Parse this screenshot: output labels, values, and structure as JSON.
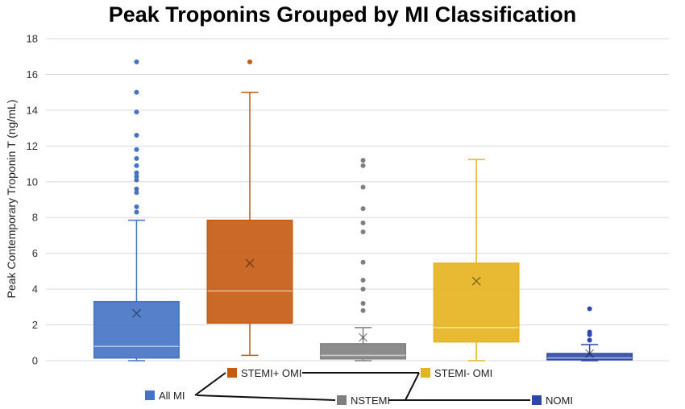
{
  "chart_data": {
    "type": "boxplot",
    "title": "Peak Troponins Grouped by MI Classification",
    "ylabel": "Peak Contemporary Troponin T (ng/mL)",
    "xlabel": "",
    "ylim": [
      0,
      18
    ],
    "yticks": [
      0,
      2,
      4,
      6,
      8,
      10,
      12,
      14,
      16,
      18
    ],
    "grid": true,
    "series": [
      {
        "name": "All MI",
        "color": "#4472c4",
        "whisker_low": 0.0,
        "q1": 0.15,
        "median": 0.8,
        "q3": 3.3,
        "whisker_high": 7.85,
        "mean": 2.65,
        "outliers": [
          8.3,
          8.6,
          9.4,
          9.6,
          10.1,
          10.3,
          10.5,
          10.9,
          11.3,
          11.8,
          12.6,
          13.9,
          15.0,
          16.7
        ]
      },
      {
        "name": "STEMI+ OMI",
        "color": "#c55a11",
        "whisker_low": 0.3,
        "q1": 2.1,
        "median": 3.9,
        "q3": 7.85,
        "whisker_high": 15.0,
        "mean": 5.45,
        "outliers": [
          16.7
        ]
      },
      {
        "name": "NSTEMI",
        "color": "#7f7f7f",
        "whisker_low": 0.0,
        "q1": 0.1,
        "median": 0.3,
        "q3": 0.95,
        "whisker_high": 1.85,
        "mean": 1.3,
        "outliers": [
          2.8,
          3.2,
          4.0,
          4.5,
          5.5,
          7.2,
          7.7,
          8.5,
          9.7,
          10.9,
          11.2
        ]
      },
      {
        "name": "STEMI- OMI",
        "color": "#e6b21e",
        "whisker_low": 0.0,
        "q1": 1.05,
        "median": 1.85,
        "q3": 5.45,
        "whisker_high": 11.25,
        "mean": 4.45,
        "outliers": []
      },
      {
        "name": "NOMI",
        "color": "#2f48a8",
        "whisker_low": 0.0,
        "q1": 0.05,
        "median": 0.15,
        "q3": 0.4,
        "whisker_high": 0.9,
        "mean": 0.4,
        "outliers": [
          1.15,
          1.45,
          1.6,
          2.9
        ]
      }
    ],
    "legend": {
      "groups": [
        [
          "All MI",
          "NSTEMI",
          "NOMI"
        ],
        [
          "STEMI+ OMI",
          "STEMI- OMI"
        ]
      ]
    }
  }
}
